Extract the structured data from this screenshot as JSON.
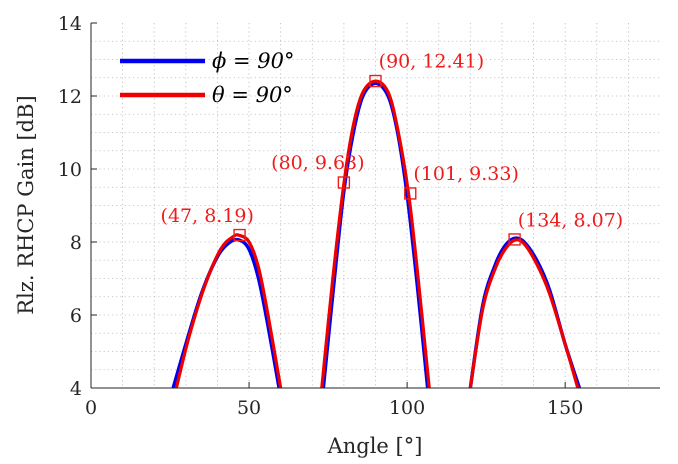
{
  "chart_data": {
    "type": "line",
    "title": "",
    "xlabel": "Angle [°]",
    "ylabel": "Rlz. RHCP Gain [dB]",
    "xlim": [
      0,
      180
    ],
    "ylim": [
      4,
      14
    ],
    "xticks": [
      0,
      50,
      100,
      150
    ],
    "yticks": [
      4,
      6,
      8,
      10,
      12,
      14
    ],
    "xtick_labels": [
      "0",
      "50",
      "100",
      "150"
    ],
    "ytick_labels": [
      "4",
      "6",
      "8",
      "10",
      "12",
      "14"
    ],
    "grid": "minor-dotted",
    "legend_position": "top-left",
    "colors": {
      "phi": "#0000ee",
      "theta": "#ee0000",
      "annotation": "#ee1c1c",
      "grid": "#b8b8b8",
      "axis": "#262626"
    },
    "series": [
      {
        "name": "ϕ = 90°",
        "legend_label": "ϕ = 90°",
        "color": "#0000ee",
        "lobes": [
          {
            "x": [
              26,
              30,
              35,
              40,
              44,
              47,
              50,
              53,
              56,
              59.5
            ],
            "y": [
              4.0,
              5.2,
              6.6,
              7.6,
              8.0,
              8.05,
              7.8,
              7.0,
              5.7,
              4.0
            ]
          },
          {
            "x": [
              73.5,
              77,
              80,
              83,
              86,
              90,
              94,
              97,
              100,
              103,
              106.5
            ],
            "y": [
              4.0,
              7.0,
              9.4,
              11.0,
              12.0,
              12.35,
              12.0,
              11.0,
              9.3,
              7.0,
              4.0
            ]
          },
          {
            "x": [
              120,
              124,
              128,
              131,
              134,
              137,
              141,
              145,
              150,
              154.5
            ],
            "y": [
              4.0,
              6.3,
              7.4,
              7.9,
              8.1,
              8.0,
              7.5,
              6.7,
              5.2,
              4.0
            ]
          }
        ]
      },
      {
        "name": "θ = 90°",
        "legend_label": "θ = 90°",
        "color": "#ee0000",
        "lobes": [
          {
            "x": [
              27,
              31,
              36,
              41,
              45,
              47,
              50,
              53,
              56,
              60
            ],
            "y": [
              4.0,
              5.4,
              6.8,
              7.8,
              8.15,
              8.18,
              8.0,
              7.3,
              6.0,
              4.0
            ]
          },
          {
            "x": [
              73,
              76.5,
              80,
              83,
              86,
              90,
              94,
              97,
              100.5,
              103.5,
              107
            ],
            "y": [
              4.0,
              7.0,
              9.6,
              11.2,
              12.1,
              12.41,
              12.1,
              11.1,
              9.3,
              7.0,
              4.0
            ]
          },
          {
            "x": [
              120,
              124,
              128,
              131,
              134,
              137,
              141,
              145,
              150,
              154
            ],
            "y": [
              4.0,
              6.2,
              7.3,
              7.8,
              8.05,
              7.95,
              7.4,
              6.6,
              5.2,
              4.0
            ]
          }
        ]
      }
    ],
    "markers": [
      {
        "x": 47,
        "y": 8.19,
        "label": "(47, 8.19)",
        "label_x": 22,
        "label_y": 8.55
      },
      {
        "x": 80,
        "y": 9.63,
        "label": "(80, 9.63)",
        "label_x": 57,
        "label_y": 10.0
      },
      {
        "x": 90,
        "y": 12.41,
        "label": "(90, 12.41)",
        "label_x": 91,
        "label_y": 12.78
      },
      {
        "x": 101,
        "y": 9.33,
        "label": "(101, 9.33)",
        "label_x": 102,
        "label_y": 9.7
      },
      {
        "x": 134,
        "y": 8.07,
        "label": "(134, 8.07)",
        "label_x": 135,
        "label_y": 8.43
      }
    ]
  }
}
